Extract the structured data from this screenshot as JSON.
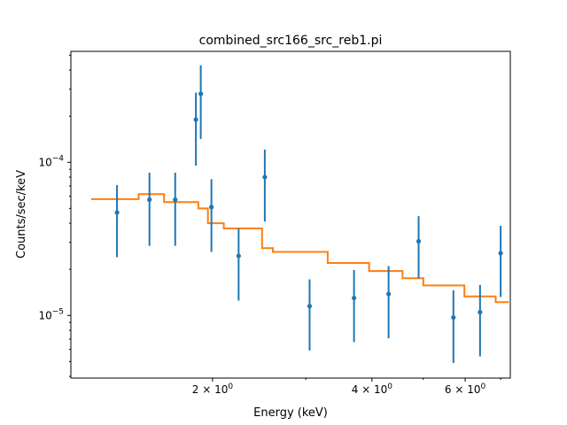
{
  "chart_data": {
    "type": "scatter",
    "title": "combined_src166_src_reb1.pi",
    "xlabel": "Energy (keV)",
    "ylabel": "Counts/sec/keV",
    "xscale": "log",
    "yscale": "log",
    "xlim": [
      1.08,
      7.3
    ],
    "ylim": [
      3.9e-06,
      0.00053
    ],
    "grid": false,
    "x_ticks": [
      {
        "value": 2,
        "base": "2 × 10",
        "exp": "0"
      },
      {
        "value": 4,
        "base": "4 × 10",
        "exp": "0"
      },
      {
        "value": 6,
        "base": "6 × 10",
        "exp": "0"
      }
    ],
    "y_ticks": [
      {
        "value": 1e-05,
        "base": "10",
        "exp": "−5"
      },
      {
        "value": 0.0001,
        "base": "10",
        "exp": "−4"
      }
    ],
    "data_points": {
      "color": "#1f77b4",
      "x": [
        1.32,
        1.52,
        1.7,
        1.86,
        1.9,
        1.99,
        2.24,
        2.51,
        3.05,
        3.7,
        4.3,
        4.9,
        5.7,
        6.4,
        7.0
      ],
      "y": [
        4.7e-05,
        5.7e-05,
        5.7e-05,
        0.00019,
        0.00028,
        5.1e-05,
        2.45e-05,
        8e-05,
        1.15e-05,
        1.3e-05,
        1.38e-05,
        3.05e-05,
        9.7e-06,
        1.05e-05,
        2.55e-05
      ],
      "y_low": [
        2.4e-05,
        2.85e-05,
        2.85e-05,
        9.5e-05,
        0.000142,
        2.6e-05,
        1.25e-05,
        4.1e-05,
        5.9e-06,
        6.7e-06,
        7.1e-06,
        1.75e-05,
        4.9e-06,
        5.4e-06,
        1.32e-05
      ],
      "y_high": [
        7.1e-05,
        8.55e-05,
        8.55e-05,
        0.000285,
        0.00043,
        7.75e-05,
        3.7e-05,
        0.000121,
        1.72e-05,
        1.98e-05,
        2.1e-05,
        4.45e-05,
        1.46e-05,
        1.58e-05,
        3.85e-05
      ]
    },
    "model": {
      "color": "#ff7f0e",
      "bin_edges": [
        1.18,
        1.45,
        1.62,
        1.88,
        1.96,
        2.1,
        2.48,
        2.6,
        3.3,
        3.95,
        4.57,
        5.0,
        5.98,
        6.85,
        7.25
      ],
      "values": [
        5.75e-05,
        6.2e-05,
        5.5e-05,
        5e-05,
        4e-05,
        3.7e-05,
        2.75e-05,
        2.6e-05,
        2.2e-05,
        1.95e-05,
        1.75e-05,
        1.57e-05,
        1.33e-05,
        1.22e-05
      ]
    }
  }
}
